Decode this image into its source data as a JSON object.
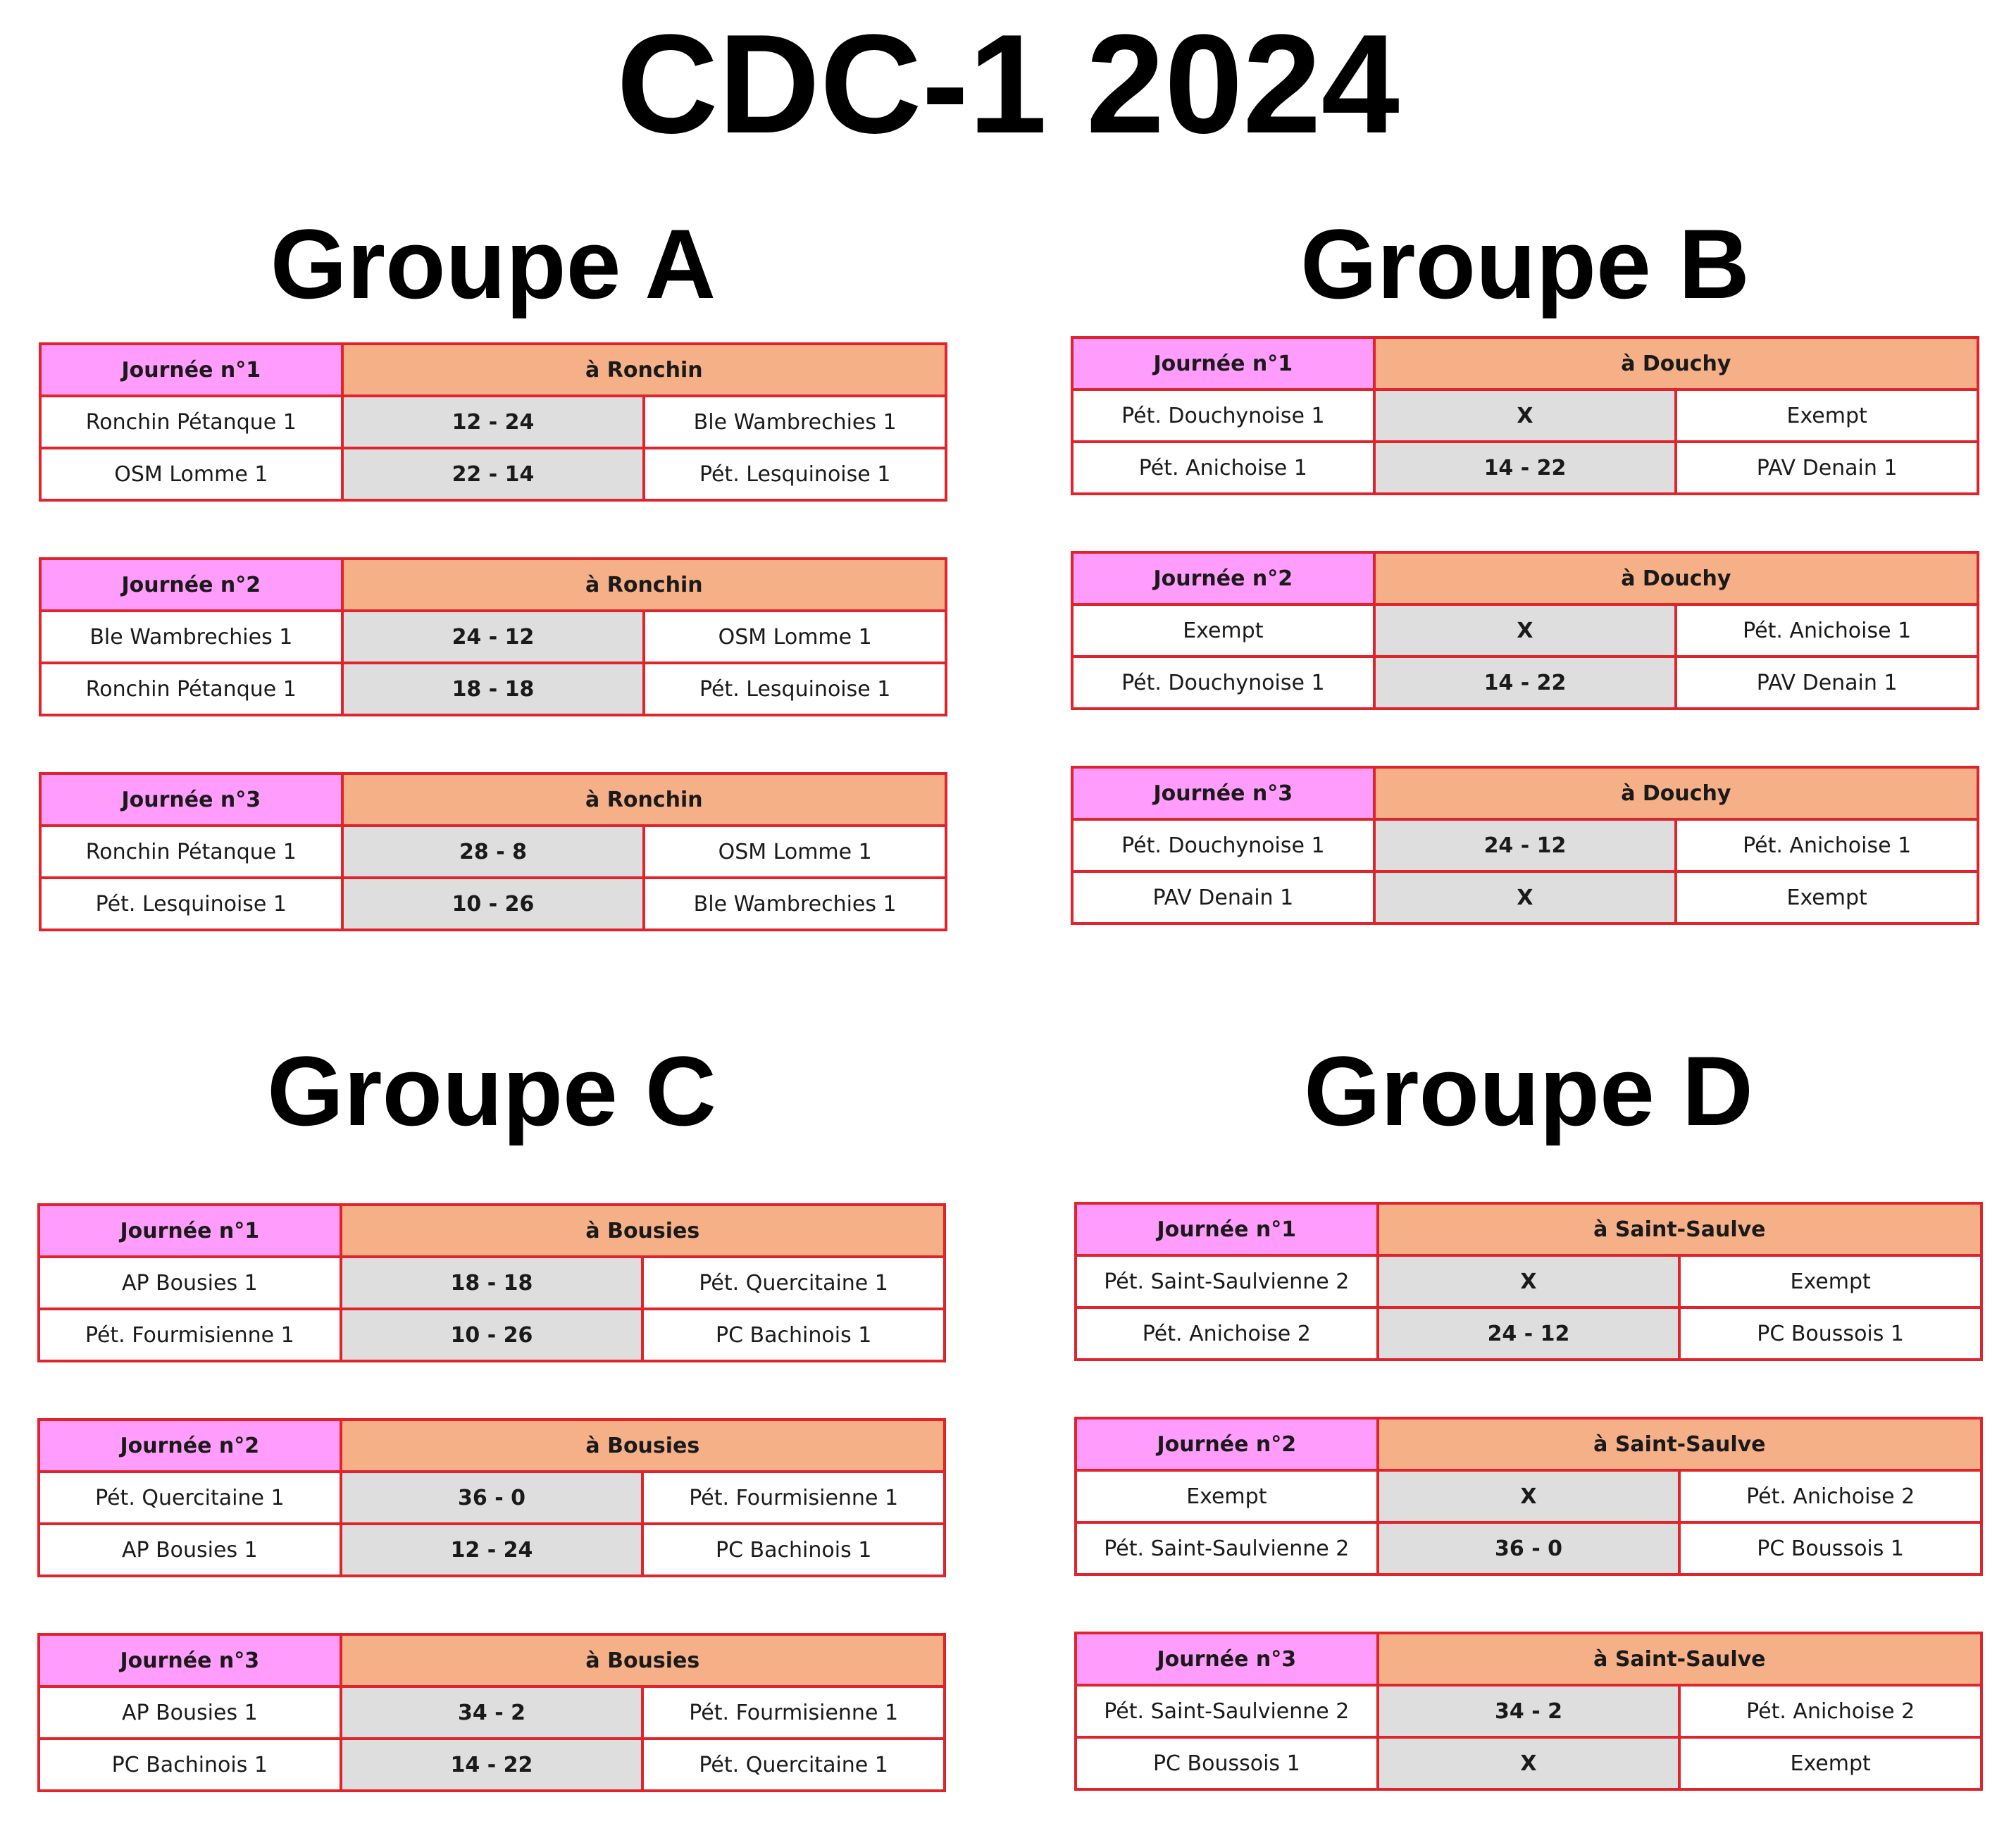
{
  "title": "CDC-1 2024",
  "groups": [
    {
      "name": "Groupe A",
      "rounds": [
        {
          "day": "Journée n°1",
          "venue": "à Ronchin",
          "matches": [
            {
              "home": "Ronchin Pétanque 1",
              "score": "12 - 24",
              "away": "Ble Wambrechies 1"
            },
            {
              "home": "OSM Lomme 1",
              "score": "22 - 14",
              "away": "Pét. Lesquinoise 1"
            }
          ]
        },
        {
          "day": "Journée n°2",
          "venue": "à Ronchin",
          "matches": [
            {
              "home": "Ble Wambrechies 1",
              "score": "24 - 12",
              "away": "OSM Lomme 1"
            },
            {
              "home": "Ronchin Pétanque 1",
              "score": "18 - 18",
              "away": "Pét. Lesquinoise 1"
            }
          ]
        },
        {
          "day": "Journée n°3",
          "venue": "à Ronchin",
          "matches": [
            {
              "home": "Ronchin Pétanque 1",
              "score": "28 - 8",
              "away": "OSM Lomme 1"
            },
            {
              "home": "Pét. Lesquinoise 1",
              "score": "10 - 26",
              "away": "Ble Wambrechies 1"
            }
          ]
        }
      ]
    },
    {
      "name": "Groupe B",
      "rounds": [
        {
          "day": "Journée n°1",
          "venue": "à Douchy",
          "matches": [
            {
              "home": "Pét. Douchynoise 1",
              "score": "X",
              "away": "Exempt"
            },
            {
              "home": "Pét. Anichoise 1",
              "score": "14 - 22",
              "away": "PAV Denain 1"
            }
          ]
        },
        {
          "day": "Journée n°2",
          "venue": "à Douchy",
          "matches": [
            {
              "home": "Exempt",
              "score": "X",
              "away": "Pét. Anichoise 1"
            },
            {
              "home": "Pét. Douchynoise 1",
              "score": "14 - 22",
              "away": "PAV Denain 1"
            }
          ]
        },
        {
          "day": "Journée n°3",
          "venue": "à Douchy",
          "matches": [
            {
              "home": "Pét. Douchynoise 1",
              "score": "24 - 12",
              "away": "Pét. Anichoise 1"
            },
            {
              "home": "PAV Denain 1",
              "score": "X",
              "away": "Exempt"
            }
          ]
        }
      ]
    },
    {
      "name": "Groupe C",
      "rounds": [
        {
          "day": "Journée n°1",
          "venue": "à Bousies",
          "matches": [
            {
              "home": "AP Bousies 1",
              "score": "18 - 18",
              "away": "Pét. Quercitaine 1"
            },
            {
              "home": "Pét. Fourmisienne 1",
              "score": "10 - 26",
              "away": "PC Bachinois 1"
            }
          ]
        },
        {
          "day": "Journée n°2",
          "venue": "à Bousies",
          "matches": [
            {
              "home": "Pét. Quercitaine 1",
              "score": "36 - 0",
              "away": "Pét. Fourmisienne 1"
            },
            {
              "home": "AP Bousies 1",
              "score": "12 - 24",
              "away": "PC Bachinois 1"
            }
          ]
        },
        {
          "day": "Journée n°3",
          "venue": "à Bousies",
          "matches": [
            {
              "home": "AP Bousies 1",
              "score": "34 - 2",
              "away": "Pét. Fourmisienne 1"
            },
            {
              "home": "PC Bachinois 1",
              "score": "14 - 22",
              "away": "Pét. Quercitaine 1"
            }
          ]
        }
      ]
    },
    {
      "name": "Groupe D",
      "rounds": [
        {
          "day": "Journée n°1",
          "venue": "à Saint-Saulve",
          "matches": [
            {
              "home": "Pét. Saint-Saulvienne 2",
              "score": "X",
              "away": "Exempt"
            },
            {
              "home": "Pét. Anichoise 2",
              "score": "24 - 12",
              "away": "PC Boussois 1"
            }
          ]
        },
        {
          "day": "Journée n°2",
          "venue": "à Saint-Saulve",
          "matches": [
            {
              "home": "Exempt",
              "score": "X",
              "away": "Pét. Anichoise 2"
            },
            {
              "home": "Pét. Saint-Saulvienne 2",
              "score": "36 - 0",
              "away": "PC Boussois 1"
            }
          ]
        },
        {
          "day": "Journée n°3",
          "venue": "à Saint-Saulve",
          "matches": [
            {
              "home": "Pét. Saint-Saulvienne 2",
              "score": "34 - 2",
              "away": "Pét. Anichoise 2"
            },
            {
              "home": "PC Boussois 1",
              "score": "X",
              "away": "Exempt"
            }
          ]
        }
      ]
    }
  ]
}
